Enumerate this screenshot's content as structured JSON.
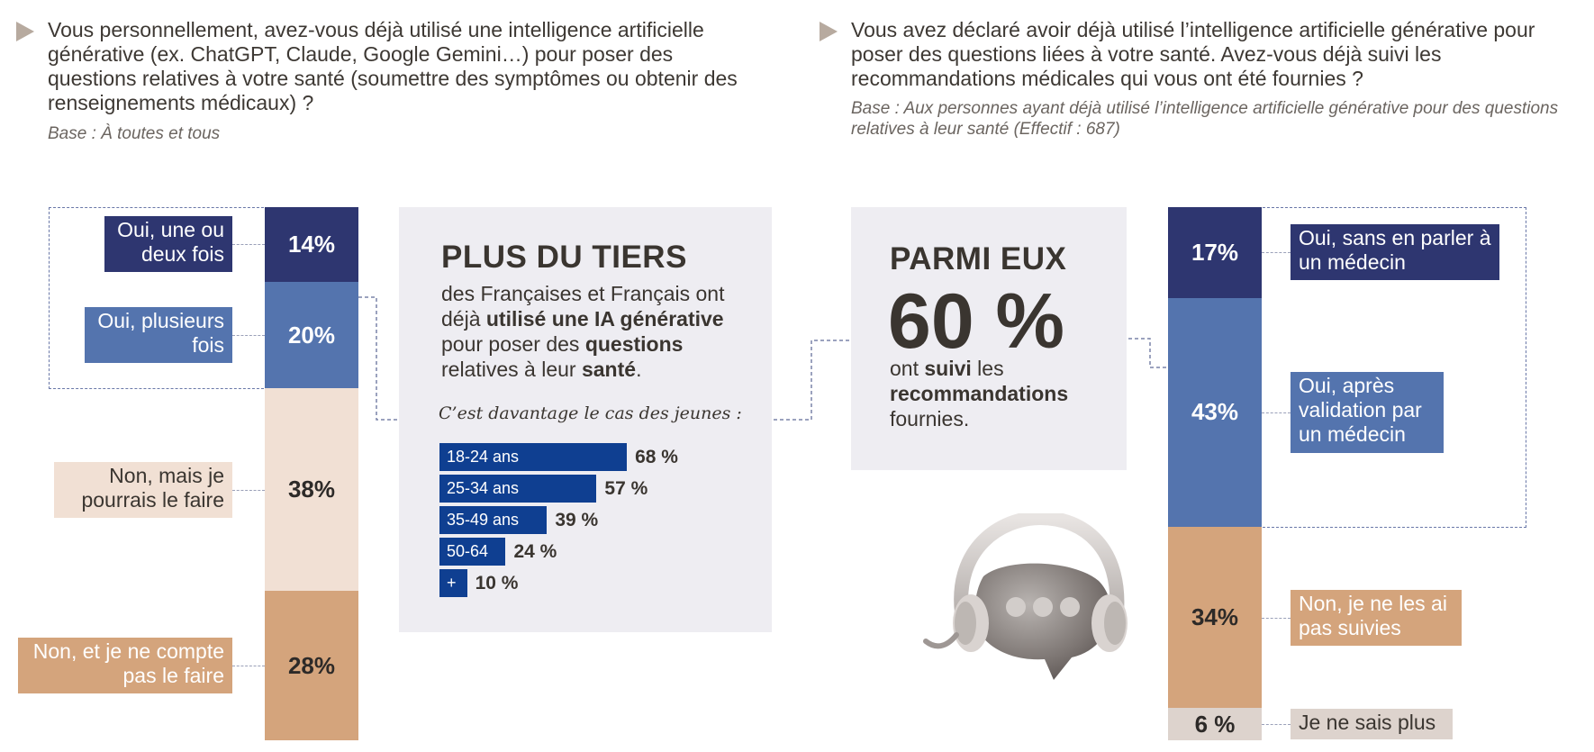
{
  "left": {
    "question": "Vous personnellement, avez-vous déjà utilisé une intelligence artificielle générative (ex. ChatGPT, Claude, Google Gemini…) pour poser des questions relatives à votre santé (soumettre des symptômes ou obtenir des renseignements médicaux) ?",
    "base": "Base : À toutes et tous"
  },
  "right": {
    "question": "Vous avez déclaré avoir déjà utilisé l’intelligence artificielle générative pour poser des questions liées à votre santé. Avez-vous déjà suivi les recommandations médicales qui vous ont été fournies ?",
    "base": "Base : Aux personnes ayant déjà utilisé l’intelligence artificielle générative pour des questions relatives à leur santé (Effectif : 687)"
  },
  "card_left": {
    "title": "PLUS DU TIERS",
    "text_1": "des Françaises et Français ont déjà ",
    "text_bold_1": "utilisé une IA générative",
    "text_2": " pour poser des ",
    "text_bold_2": "questions",
    "text_3": " relatives à leur ",
    "text_bold_3": "santé",
    "text_4": ".",
    "note": "C’est davantage le cas des jeunes :"
  },
  "card_right": {
    "title": "PARMI EUX",
    "big_value": "60 %",
    "text_1": "ont ",
    "text_bold_1": "suivi",
    "text_2": " les ",
    "text_bold_2": "recommandations",
    "text_3": " fournies."
  },
  "chart_data": [
    {
      "type": "bar",
      "stacked": true,
      "categories": [
        "Oui, une ou deux fois",
        "Oui, plusieurs fois",
        "Non, mais je pourrais le faire",
        "Non, et je ne compte pas le faire"
      ],
      "values": [
        14,
        20,
        38,
        28
      ],
      "value_labels": [
        "14%",
        "20%",
        "38%",
        "28%"
      ],
      "colors": [
        "#2e3670",
        "#5474ae",
        "#f1e0d4",
        "#d4a47c"
      ]
    },
    {
      "type": "bar",
      "orientation": "horizontal",
      "categories": [
        "18-24 ans",
        "25-34 ans",
        "35-49 ans",
        "50-64",
        "+"
      ],
      "values": [
        68,
        57,
        39,
        24,
        10
      ],
      "value_labels": [
        "68 %",
        "57 %",
        "39 %",
        "24 %",
        "10 %"
      ],
      "xlim": [
        0,
        100
      ],
      "color": "#0f3f91"
    },
    {
      "type": "bar",
      "stacked": true,
      "categories": [
        "Oui, sans en parler à un médecin",
        "Oui, après validation par un médecin",
        "Non, je ne les ai pas suivies",
        "Je ne sais plus"
      ],
      "values": [
        17,
        43,
        34,
        6
      ],
      "value_labels": [
        "17%",
        "43%",
        "34%",
        "6 %"
      ],
      "colors": [
        "#2e3670",
        "#5474ae",
        "#d4a47c",
        "#ddd3cd"
      ]
    }
  ],
  "icons": {
    "arrow": "triangle-right-icon",
    "illustration": "chat-bubble-headphones-icon"
  }
}
